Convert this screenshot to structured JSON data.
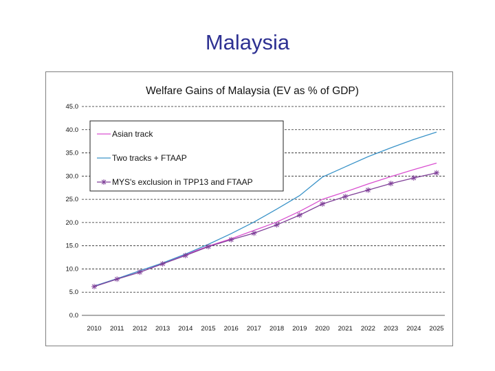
{
  "slide": {
    "title": "Malaysia"
  },
  "chart_data": {
    "type": "line",
    "title": "Welfare Gains of Malaysia (EV as % of GDP)",
    "xlabel": "",
    "ylabel": "",
    "x": [
      2010,
      2011,
      2012,
      2013,
      2014,
      2015,
      2016,
      2017,
      2018,
      2019,
      2020,
      2021,
      2022,
      2023,
      2024,
      2025
    ],
    "ylim": [
      0,
      45
    ],
    "yticks": [
      "0.0",
      "5.0",
      "10.0",
      "15.0",
      "20.0",
      "25.0",
      "30.0",
      "35.0",
      "40.0",
      "45.0"
    ],
    "grid": "horizontal dashed",
    "legend_position": "top-left",
    "series": [
      {
        "name": "Asian track",
        "color": "#d94fd0",
        "marker": "none",
        "values": [
          6.3,
          7.9,
          9.6,
          11.2,
          13.1,
          14.9,
          16.5,
          18.3,
          20.1,
          22.4,
          25.0,
          26.6,
          28.3,
          29.9,
          31.4,
          32.8
        ]
      },
      {
        "name": "Two tracks + FTAAP",
        "color": "#3a93c8",
        "marker": "none",
        "values": [
          6.3,
          7.9,
          9.6,
          11.3,
          13.2,
          15.3,
          17.6,
          20.1,
          22.9,
          25.8,
          29.8,
          32.0,
          34.2,
          36.1,
          37.9,
          39.5
        ]
      },
      {
        "name": "MYS's exclusion in TPP13 and FTAAP",
        "color": "#7f3f98",
        "marker": "asterisk",
        "values": [
          6.2,
          7.8,
          9.3,
          11.1,
          12.9,
          14.8,
          16.3,
          17.7,
          19.5,
          21.6,
          24.0,
          25.6,
          27.0,
          28.4,
          29.6,
          30.7
        ]
      }
    ]
  }
}
